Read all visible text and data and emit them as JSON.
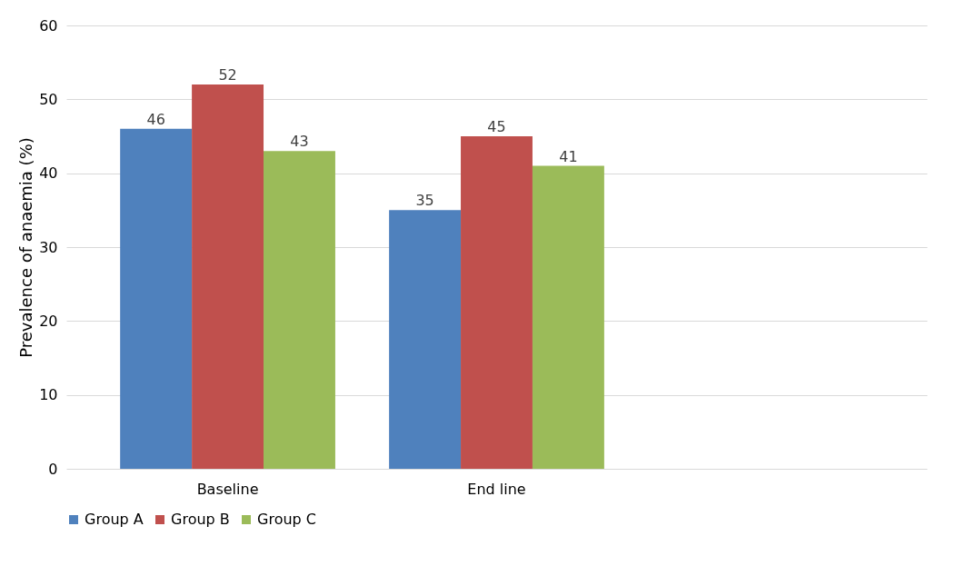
{
  "chart_data": {
    "type": "bar",
    "ylabel": "Prevalence of anaemia (%)",
    "categories": [
      "Baseline",
      "End line",
      null
    ],
    "series": [
      {
        "name": "Group A",
        "color": "#4f81bd",
        "values": [
          46,
          35,
          null
        ]
      },
      {
        "name": "Group B",
        "color": "#c0504d",
        "values": [
          52,
          45,
          null
        ]
      },
      {
        "name": "Group C",
        "color": "#9bbb59",
        "values": [
          43,
          41,
          null
        ]
      }
    ],
    "ylim": [
      0,
      60
    ],
    "yticks": [
      0,
      10,
      20,
      30,
      40,
      50,
      60
    ],
    "grid": "y",
    "legend": "bottom",
    "data_labels": true
  }
}
